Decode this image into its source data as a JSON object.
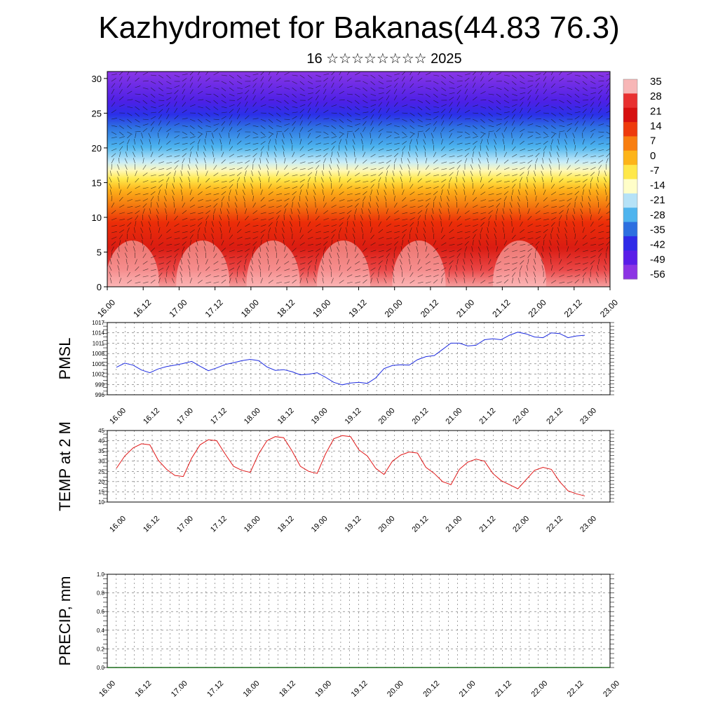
{
  "header": {
    "title": "Kazhydromet for Bakanas(44.83 76.3)",
    "subtitle": "16 ☆☆☆☆☆☆☆☆ 2025"
  },
  "time_labels": [
    "16.00",
    "16.12",
    "17.00",
    "17.12",
    "18.00",
    "18.12",
    "19.00",
    "19.12",
    "20.00",
    "20.12",
    "21.00",
    "21.12",
    "22.00",
    "22.12",
    "23.00"
  ],
  "chart_data": [
    {
      "type": "heatmap",
      "x": [
        "16.00",
        "16.12",
        "17.00",
        "17.12",
        "18.00",
        "18.12",
        "19.00",
        "19.12",
        "20.00",
        "20.12",
        "21.00",
        "21.12",
        "22.00",
        "22.12",
        "23.00"
      ],
      "ylim": [
        0,
        31
      ],
      "yticks": [
        0,
        5,
        10,
        15,
        20,
        25,
        30
      ],
      "colorbar": {
        "labels": [
          "35",
          "28",
          "21",
          "14",
          "7",
          "0",
          "-7",
          "-14",
          "-21",
          "-28",
          "-35",
          "-42",
          "-49",
          "-56"
        ],
        "colors": [
          "#f7b6b6",
          "#e83030",
          "#d61010",
          "#ee3a0c",
          "#f87e10",
          "#fdb419",
          "#ffe84a",
          "#fffec8",
          "#b6e2f7",
          "#4fb4ee",
          "#2d6fe0",
          "#2f2ae8",
          "#5a1de8",
          "#8c34e4"
        ]
      },
      "overlay": "wind barbs"
    },
    {
      "type": "line",
      "ylabel": "PMSL",
      "ylim": [
        996,
        1017
      ],
      "yticks": [
        996,
        999,
        1002,
        1005,
        1008,
        1011,
        1014,
        1017
      ],
      "color": "#1f2de0",
      "x": [
        "16.00",
        "16.03",
        "16.06",
        "16.09",
        "16.12",
        "16.15",
        "16.18",
        "16.21",
        "17.00",
        "17.03",
        "17.06",
        "17.09",
        "17.12",
        "17.15",
        "17.18",
        "17.21",
        "18.00",
        "18.03",
        "18.06",
        "18.09",
        "18.12",
        "18.15",
        "18.18",
        "18.21",
        "19.00",
        "19.03",
        "19.06",
        "19.09",
        "19.12",
        "19.15",
        "19.18",
        "19.21",
        "20.00",
        "20.03",
        "20.06",
        "20.09",
        "20.12",
        "20.15",
        "20.18",
        "20.21",
        "21.00",
        "21.03",
        "21.06",
        "21.09",
        "21.12",
        "21.15",
        "21.18",
        "21.21",
        "22.00",
        "22.03",
        "22.06",
        "22.09",
        "22.12",
        "22.15",
        "22.18",
        "22.21",
        "23.00"
      ],
      "values": [
        1004,
        1005.2,
        1004.6,
        1003.2,
        1002.4,
        1003.5,
        1004.2,
        1004.6,
        1005.1,
        1005.7,
        1004.3,
        1003,
        1003.8,
        1004.8,
        1005.3,
        1005.9,
        1006.3,
        1005.9,
        1004.1,
        1003.1,
        1003.3,
        1002.7,
        1001.8,
        1002,
        1002.4,
        1001.1,
        999.6,
        998.9,
        999.4,
        999.6,
        999.3,
        1000.9,
        1003.6,
        1004.5,
        1004.7,
        1004.6,
        1006.2,
        1007.1,
        1007.4,
        1009.2,
        1011,
        1011,
        1010.2,
        1010.4,
        1012,
        1012.3,
        1012,
        1013.3,
        1014.2,
        1013.7,
        1012.8,
        1012.6,
        1014,
        1013.8,
        1012.6,
        1013.1,
        1013.3
      ]
    },
    {
      "type": "line",
      "ylabel": "TEMP at 2 M",
      "ylim": [
        10,
        45
      ],
      "yticks": [
        10,
        15,
        20,
        25,
        30,
        35,
        40,
        45
      ],
      "color": "#e01818",
      "x": [
        "16.00",
        "16.03",
        "16.06",
        "16.09",
        "16.12",
        "16.15",
        "16.18",
        "16.21",
        "17.00",
        "17.03",
        "17.06",
        "17.09",
        "17.12",
        "17.15",
        "17.18",
        "17.21",
        "18.00",
        "18.03",
        "18.06",
        "18.09",
        "18.12",
        "18.15",
        "18.18",
        "18.21",
        "19.00",
        "19.03",
        "19.06",
        "19.09",
        "19.12",
        "19.15",
        "19.18",
        "19.21",
        "20.00",
        "20.03",
        "20.06",
        "20.09",
        "20.12",
        "20.15",
        "20.18",
        "20.21",
        "21.00",
        "21.03",
        "21.06",
        "21.09",
        "21.12",
        "21.15",
        "21.18",
        "21.21",
        "22.00",
        "22.03",
        "22.06",
        "22.09",
        "22.12",
        "22.15",
        "22.18",
        "22.21",
        "23.00"
      ],
      "values": [
        26.5,
        32.5,
        36.5,
        38.5,
        38,
        30.5,
        26,
        23,
        22.5,
        31.5,
        38,
        40.5,
        40,
        33.5,
        27.5,
        25.5,
        24.5,
        33.5,
        40,
        42,
        41.5,
        35,
        27.5,
        25,
        24,
        33.5,
        41,
        42.5,
        42,
        35.5,
        32.5,
        26.5,
        23.5,
        30,
        33,
        34.5,
        34,
        27,
        24,
        20,
        18.5,
        26,
        29.5,
        31,
        30,
        24,
        20.5,
        18.5,
        16.5,
        21,
        25.5,
        27,
        26,
        20,
        15.5,
        14,
        13
      ]
    },
    {
      "type": "line",
      "ylabel": "PRECIP, mm",
      "ylim": [
        0,
        1
      ],
      "yticks": [
        "0.0",
        "0.2",
        "0.4",
        "0.6",
        "0.8",
        "1.0"
      ],
      "color": "#1a6b1a",
      "values": [
        0,
        0,
        0,
        0,
        0,
        0,
        0,
        0,
        0,
        0,
        0,
        0,
        0,
        0,
        0
      ]
    }
  ]
}
